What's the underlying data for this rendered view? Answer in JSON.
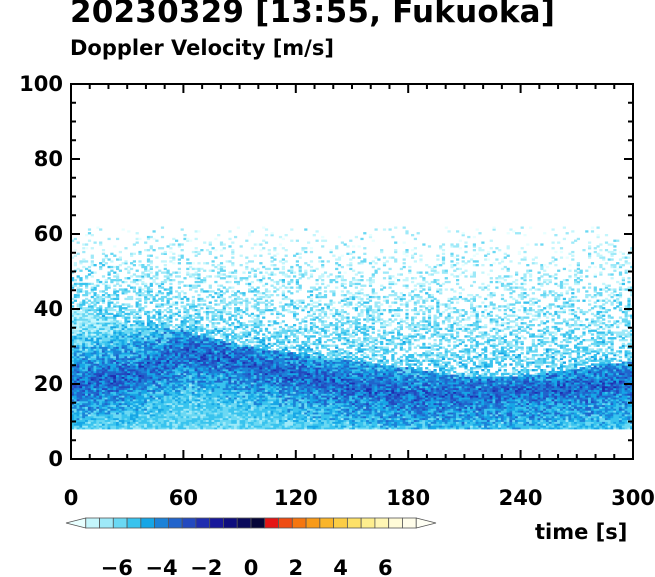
{
  "chart_data": {
    "type": "heatmap",
    "title": "20230329 [13:55, Fukuoka]",
    "subtitle": "Doppler Velocity [m/s]",
    "xlabel": "time [s]",
    "ylabel": "",
    "xlim": [
      0,
      300
    ],
    "ylim": [
      0,
      100
    ],
    "xticks": [
      "0",
      "60",
      "120",
      "180",
      "240",
      "300"
    ],
    "yticks": [
      "0",
      "20",
      "40",
      "60",
      "80",
      "100"
    ],
    "data_bottom_height": 8,
    "echo_top_height": [
      40,
      36,
      34,
      30,
      28,
      26,
      24,
      22,
      22,
      24,
      26
    ],
    "echo_top_time": [
      0,
      30,
      60,
      90,
      120,
      150,
      180,
      210,
      240,
      270,
      300
    ],
    "strong_core_height": [
      20,
      22,
      28,
      26,
      22,
      19,
      17,
      17,
      18,
      19,
      20
    ],
    "sparse_echo_top": 62,
    "colorbar": {
      "min": -8,
      "max": 8,
      "ticks": [
        "−6",
        "−4",
        "−2",
        "0",
        "2",
        "4",
        "6"
      ],
      "tick_values": [
        -6,
        -4,
        -2,
        0,
        2,
        4,
        6
      ],
      "colors": [
        "#e8ffff",
        "#c4f6fc",
        "#9ee9f8",
        "#6ad8f3",
        "#38c3ee",
        "#16a6e6",
        "#1c82d8",
        "#2164cc",
        "#2349bf",
        "#1f2db0",
        "#17179a",
        "#0e0d7e",
        "#0a0a5c",
        "#050538",
        "#e41515",
        "#ef4c12",
        "#f5760f",
        "#f89a18",
        "#fab52a",
        "#fccd45",
        "#fde168",
        "#feee8e",
        "#fff6b4",
        "#fffbd8",
        "#fffdea",
        "#fffff4"
      ]
    }
  }
}
